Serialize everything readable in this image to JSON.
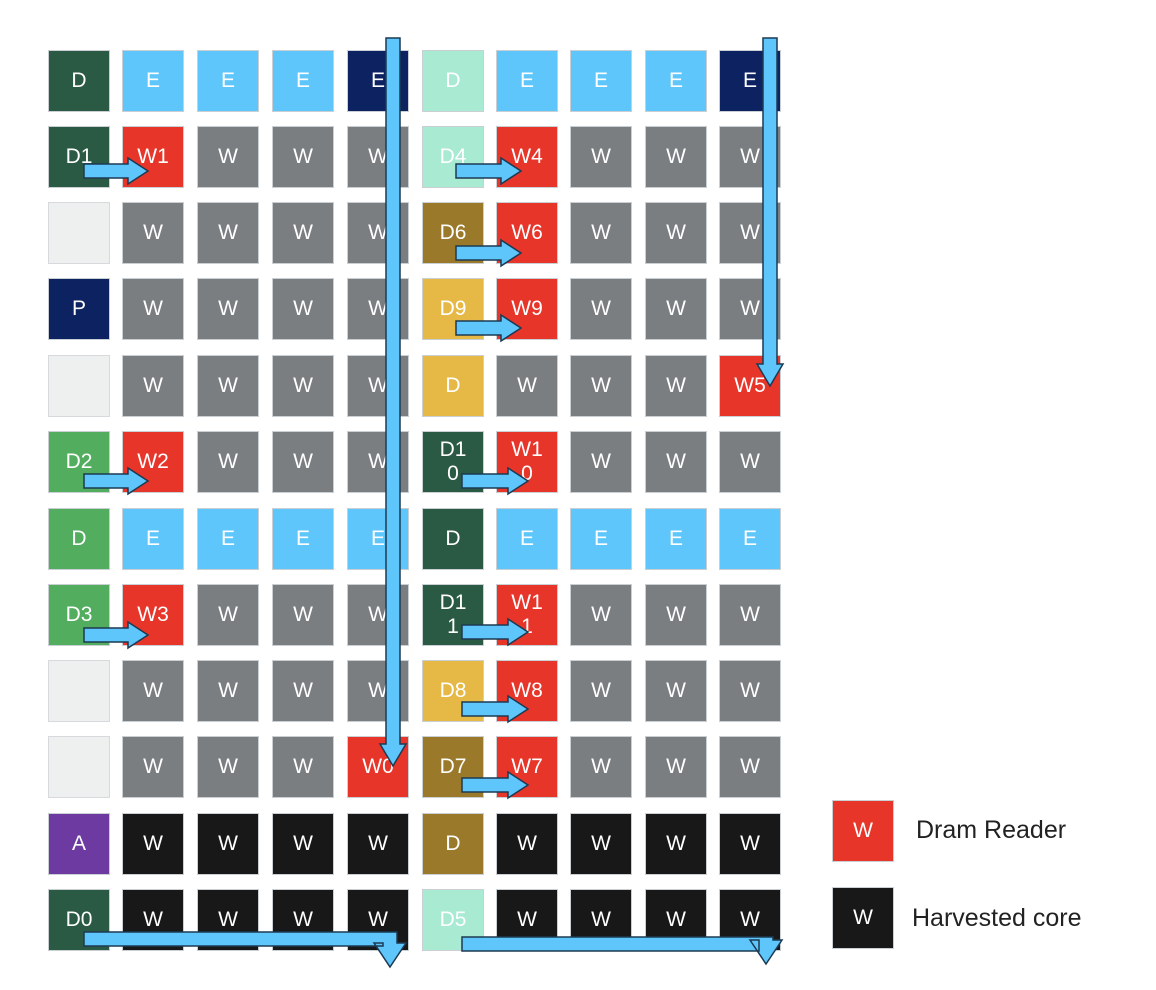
{
  "colors": {
    "dark-green": "#2a5a43",
    "light-blue": "#5ec6fb",
    "navy": "#0c2261",
    "mint": "#a9ead3",
    "red": "#e8352a",
    "gray": "#7a7e80",
    "empty": "#eef0f0",
    "olive": "#9a7a2a",
    "gold": "#e6b946",
    "green": "#52ad5f",
    "purple": "#6c3aa0",
    "black": "#181818",
    "arrow-fill": "#5ec6fb",
    "arrow-stroke": "#1c3a52"
  },
  "grid": [
    [
      [
        "D",
        "dark-green"
      ],
      [
        "E",
        "light-blue"
      ],
      [
        "E",
        "light-blue"
      ],
      [
        "E",
        "light-blue"
      ],
      [
        "E",
        "navy"
      ],
      [
        "D",
        "mint"
      ],
      [
        "E",
        "light-blue"
      ],
      [
        "E",
        "light-blue"
      ],
      [
        "E",
        "light-blue"
      ],
      [
        "E",
        "navy"
      ]
    ],
    [
      [
        "D1",
        "dark-green"
      ],
      [
        "W1",
        "red"
      ],
      [
        "W",
        "gray"
      ],
      [
        "W",
        "gray"
      ],
      [
        "W",
        "gray"
      ],
      [
        "D4",
        "mint"
      ],
      [
        "W4",
        "red"
      ],
      [
        "W",
        "gray"
      ],
      [
        "W",
        "gray"
      ],
      [
        "W",
        "gray"
      ]
    ],
    [
      [
        "",
        "empty"
      ],
      [
        "W",
        "gray"
      ],
      [
        "W",
        "gray"
      ],
      [
        "W",
        "gray"
      ],
      [
        "W",
        "gray"
      ],
      [
        "D6",
        "olive"
      ],
      [
        "W6",
        "red"
      ],
      [
        "W",
        "gray"
      ],
      [
        "W",
        "gray"
      ],
      [
        "W",
        "gray"
      ]
    ],
    [
      [
        "P",
        "navy"
      ],
      [
        "W",
        "gray"
      ],
      [
        "W",
        "gray"
      ],
      [
        "W",
        "gray"
      ],
      [
        "W",
        "gray"
      ],
      [
        "D9",
        "gold"
      ],
      [
        "W9",
        "red"
      ],
      [
        "W",
        "gray"
      ],
      [
        "W",
        "gray"
      ],
      [
        "W",
        "gray"
      ]
    ],
    [
      [
        "",
        "empty"
      ],
      [
        "W",
        "gray"
      ],
      [
        "W",
        "gray"
      ],
      [
        "W",
        "gray"
      ],
      [
        "W",
        "gray"
      ],
      [
        "D",
        "gold"
      ],
      [
        "W",
        "gray"
      ],
      [
        "W",
        "gray"
      ],
      [
        "W",
        "gray"
      ],
      [
        "W5",
        "red"
      ]
    ],
    [
      [
        "D2",
        "green"
      ],
      [
        "W2",
        "red"
      ],
      [
        "W",
        "gray"
      ],
      [
        "W",
        "gray"
      ],
      [
        "W",
        "gray"
      ],
      [
        "D1\n0",
        "dark-green"
      ],
      [
        "W1\n0",
        "red"
      ],
      [
        "W",
        "gray"
      ],
      [
        "W",
        "gray"
      ],
      [
        "W",
        "gray"
      ]
    ],
    [
      [
        "D",
        "green"
      ],
      [
        "E",
        "light-blue"
      ],
      [
        "E",
        "light-blue"
      ],
      [
        "E",
        "light-blue"
      ],
      [
        "E",
        "light-blue"
      ],
      [
        "D",
        "dark-green"
      ],
      [
        "E",
        "light-blue"
      ],
      [
        "E",
        "light-blue"
      ],
      [
        "E",
        "light-blue"
      ],
      [
        "E",
        "light-blue"
      ]
    ],
    [
      [
        "D3",
        "green"
      ],
      [
        "W3",
        "red"
      ],
      [
        "W",
        "gray"
      ],
      [
        "W",
        "gray"
      ],
      [
        "W",
        "gray"
      ],
      [
        "D1\n1",
        "dark-green"
      ],
      [
        "W1\n1",
        "red"
      ],
      [
        "W",
        "gray"
      ],
      [
        "W",
        "gray"
      ],
      [
        "W",
        "gray"
      ]
    ],
    [
      [
        "",
        "empty"
      ],
      [
        "W",
        "gray"
      ],
      [
        "W",
        "gray"
      ],
      [
        "W",
        "gray"
      ],
      [
        "W",
        "gray"
      ],
      [
        "D8",
        "gold"
      ],
      [
        "W8",
        "red"
      ],
      [
        "W",
        "gray"
      ],
      [
        "W",
        "gray"
      ],
      [
        "W",
        "gray"
      ]
    ],
    [
      [
        "",
        "empty"
      ],
      [
        "W",
        "gray"
      ],
      [
        "W",
        "gray"
      ],
      [
        "W",
        "gray"
      ],
      [
        "W0",
        "red"
      ],
      [
        "D7",
        "olive"
      ],
      [
        "W7",
        "red"
      ],
      [
        "W",
        "gray"
      ],
      [
        "W",
        "gray"
      ],
      [
        "W",
        "gray"
      ]
    ],
    [
      [
        "A",
        "purple"
      ],
      [
        "W",
        "black"
      ],
      [
        "W",
        "black"
      ],
      [
        "W",
        "black"
      ],
      [
        "W",
        "black"
      ],
      [
        "D",
        "olive"
      ],
      [
        "W",
        "black"
      ],
      [
        "W",
        "black"
      ],
      [
        "W",
        "black"
      ],
      [
        "W",
        "black"
      ]
    ],
    [
      [
        "D0",
        "dark-green"
      ],
      [
        "W",
        "black"
      ],
      [
        "W",
        "black"
      ],
      [
        "W",
        "black"
      ],
      [
        "W",
        "black"
      ],
      [
        "D5",
        "mint"
      ],
      [
        "W",
        "black"
      ],
      [
        "W",
        "black"
      ],
      [
        "W",
        "black"
      ],
      [
        "W",
        "black"
      ]
    ]
  ],
  "legend": [
    {
      "symbol": "W",
      "label": "Dram Reader",
      "color": "red"
    },
    {
      "symbol": "W",
      "label": "Harvested core",
      "color": "black"
    }
  ]
}
